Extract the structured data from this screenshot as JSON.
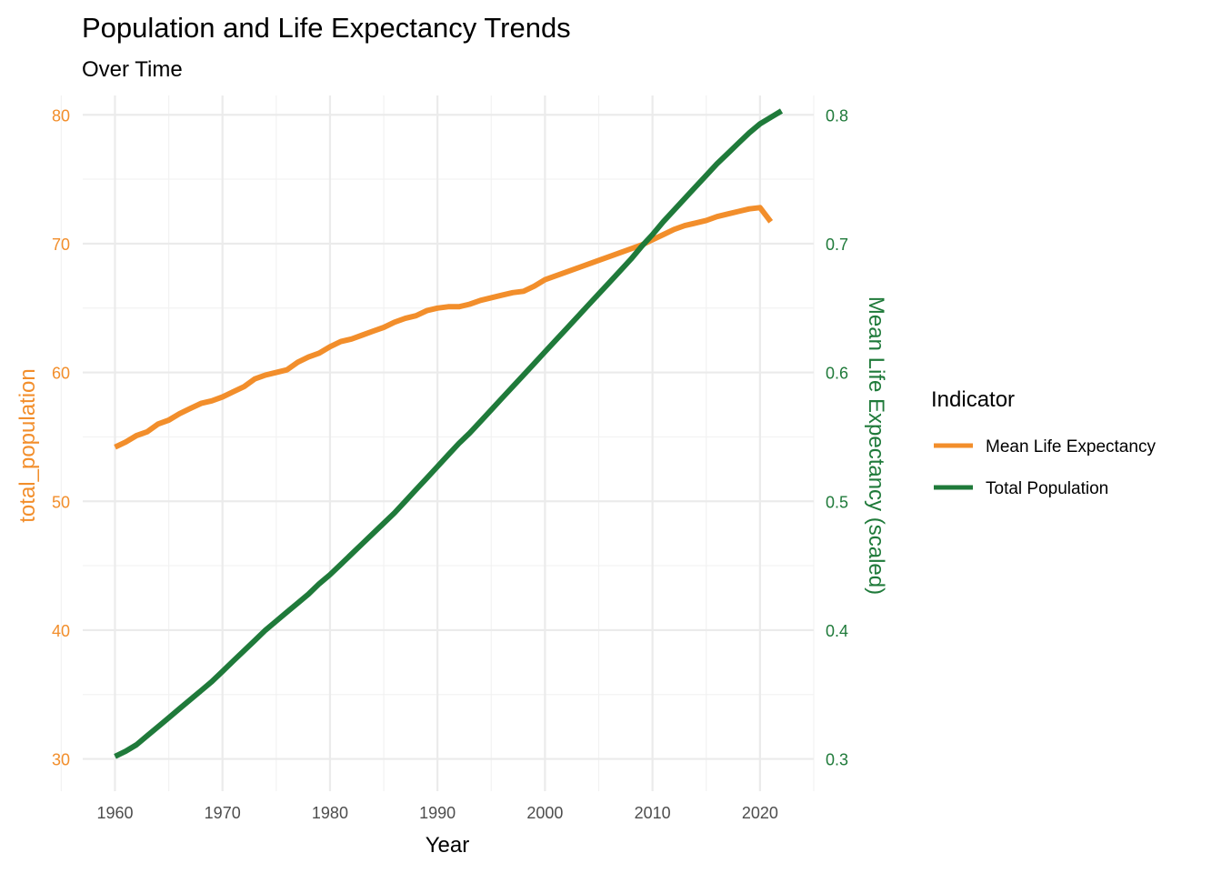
{
  "chart_data": {
    "type": "line",
    "title": "Population and Life Expectancy Trends",
    "subtitle": "Over Time",
    "xlabel": "Year",
    "ylabel_left": "total_population",
    "ylabel_right": "Mean Life Expectancy (scaled)",
    "xlim": [
      1957,
      2025
    ],
    "ylim_left": [
      27.5,
      81.5
    ],
    "ylim_right": [
      0.275,
      0.815
    ],
    "x_ticks": [
      "1960",
      "1970",
      "1980",
      "1990",
      "2000",
      "2010",
      "2020"
    ],
    "y_ticks_left": [
      "30",
      "40",
      "50",
      "60",
      "70",
      "80"
    ],
    "y_ticks_right": [
      "0.3",
      "0.4",
      "0.5",
      "0.6",
      "0.7",
      "0.8"
    ],
    "grid": true,
    "legend": {
      "title": "Indicator",
      "position": "right",
      "entries": [
        "Mean Life Expectancy",
        "Total Population"
      ]
    },
    "colors": {
      "life_expectancy": "#F28E2B",
      "population": "#1F7A3A"
    },
    "series": [
      {
        "name": "Mean Life Expectancy",
        "axis": "left",
        "color": "#F28E2B",
        "x": [
          1960,
          1961,
          1962,
          1963,
          1964,
          1965,
          1966,
          1967,
          1968,
          1969,
          1970,
          1971,
          1972,
          1973,
          1974,
          1975,
          1976,
          1977,
          1978,
          1979,
          1980,
          1981,
          1982,
          1983,
          1984,
          1985,
          1986,
          1987,
          1988,
          1989,
          1990,
          1991,
          1992,
          1993,
          1994,
          1995,
          1996,
          1997,
          1998,
          1999,
          2000,
          2001,
          2002,
          2003,
          2004,
          2005,
          2006,
          2007,
          2008,
          2009,
          2010,
          2011,
          2012,
          2013,
          2014,
          2015,
          2016,
          2017,
          2018,
          2019,
          2020,
          2021
        ],
        "y": [
          54.2,
          54.6,
          55.1,
          55.4,
          56.0,
          56.3,
          56.8,
          57.2,
          57.6,
          57.8,
          58.1,
          58.5,
          58.9,
          59.5,
          59.8,
          60.0,
          60.2,
          60.8,
          61.2,
          61.5,
          62.0,
          62.4,
          62.6,
          62.9,
          63.2,
          63.5,
          63.9,
          64.2,
          64.4,
          64.8,
          65.0,
          65.1,
          65.1,
          65.3,
          65.6,
          65.8,
          66.0,
          66.2,
          66.3,
          66.7,
          67.2,
          67.5,
          67.8,
          68.1,
          68.4,
          68.7,
          69.0,
          69.3,
          69.6,
          69.9,
          70.3,
          70.7,
          71.1,
          71.4,
          71.6,
          71.8,
          72.1,
          72.3,
          72.5,
          72.7,
          72.8,
          71.7
        ]
      },
      {
        "name": "Total Population",
        "axis": "right",
        "color": "#1F7A3A",
        "x": [
          1960,
          1961,
          1962,
          1963,
          1964,
          1965,
          1966,
          1967,
          1968,
          1969,
          1970,
          1971,
          1972,
          1973,
          1974,
          1975,
          1976,
          1977,
          1978,
          1979,
          1980,
          1981,
          1982,
          1983,
          1984,
          1985,
          1986,
          1987,
          1988,
          1989,
          1990,
          1991,
          1992,
          1993,
          1994,
          1995,
          1996,
          1997,
          1998,
          1999,
          2000,
          2001,
          2002,
          2003,
          2004,
          2005,
          2006,
          2007,
          2008,
          2009,
          2010,
          2011,
          2012,
          2013,
          2014,
          2015,
          2016,
          2017,
          2018,
          2019,
          2020,
          2021,
          2022
        ],
        "y": [
          0.302,
          0.306,
          0.311,
          0.318,
          0.325,
          0.332,
          0.339,
          0.346,
          0.353,
          0.36,
          0.368,
          0.376,
          0.384,
          0.392,
          0.4,
          0.407,
          0.414,
          0.421,
          0.428,
          0.436,
          0.443,
          0.451,
          0.459,
          0.467,
          0.475,
          0.483,
          0.491,
          0.5,
          0.509,
          0.518,
          0.527,
          0.536,
          0.545,
          0.553,
          0.562,
          0.571,
          0.58,
          0.589,
          0.598,
          0.607,
          0.616,
          0.625,
          0.634,
          0.643,
          0.652,
          0.661,
          0.67,
          0.679,
          0.688,
          0.698,
          0.707,
          0.717,
          0.726,
          0.735,
          0.744,
          0.753,
          0.762,
          0.77,
          0.778,
          0.786,
          0.793,
          0.798,
          0.803
        ]
      }
    ]
  }
}
